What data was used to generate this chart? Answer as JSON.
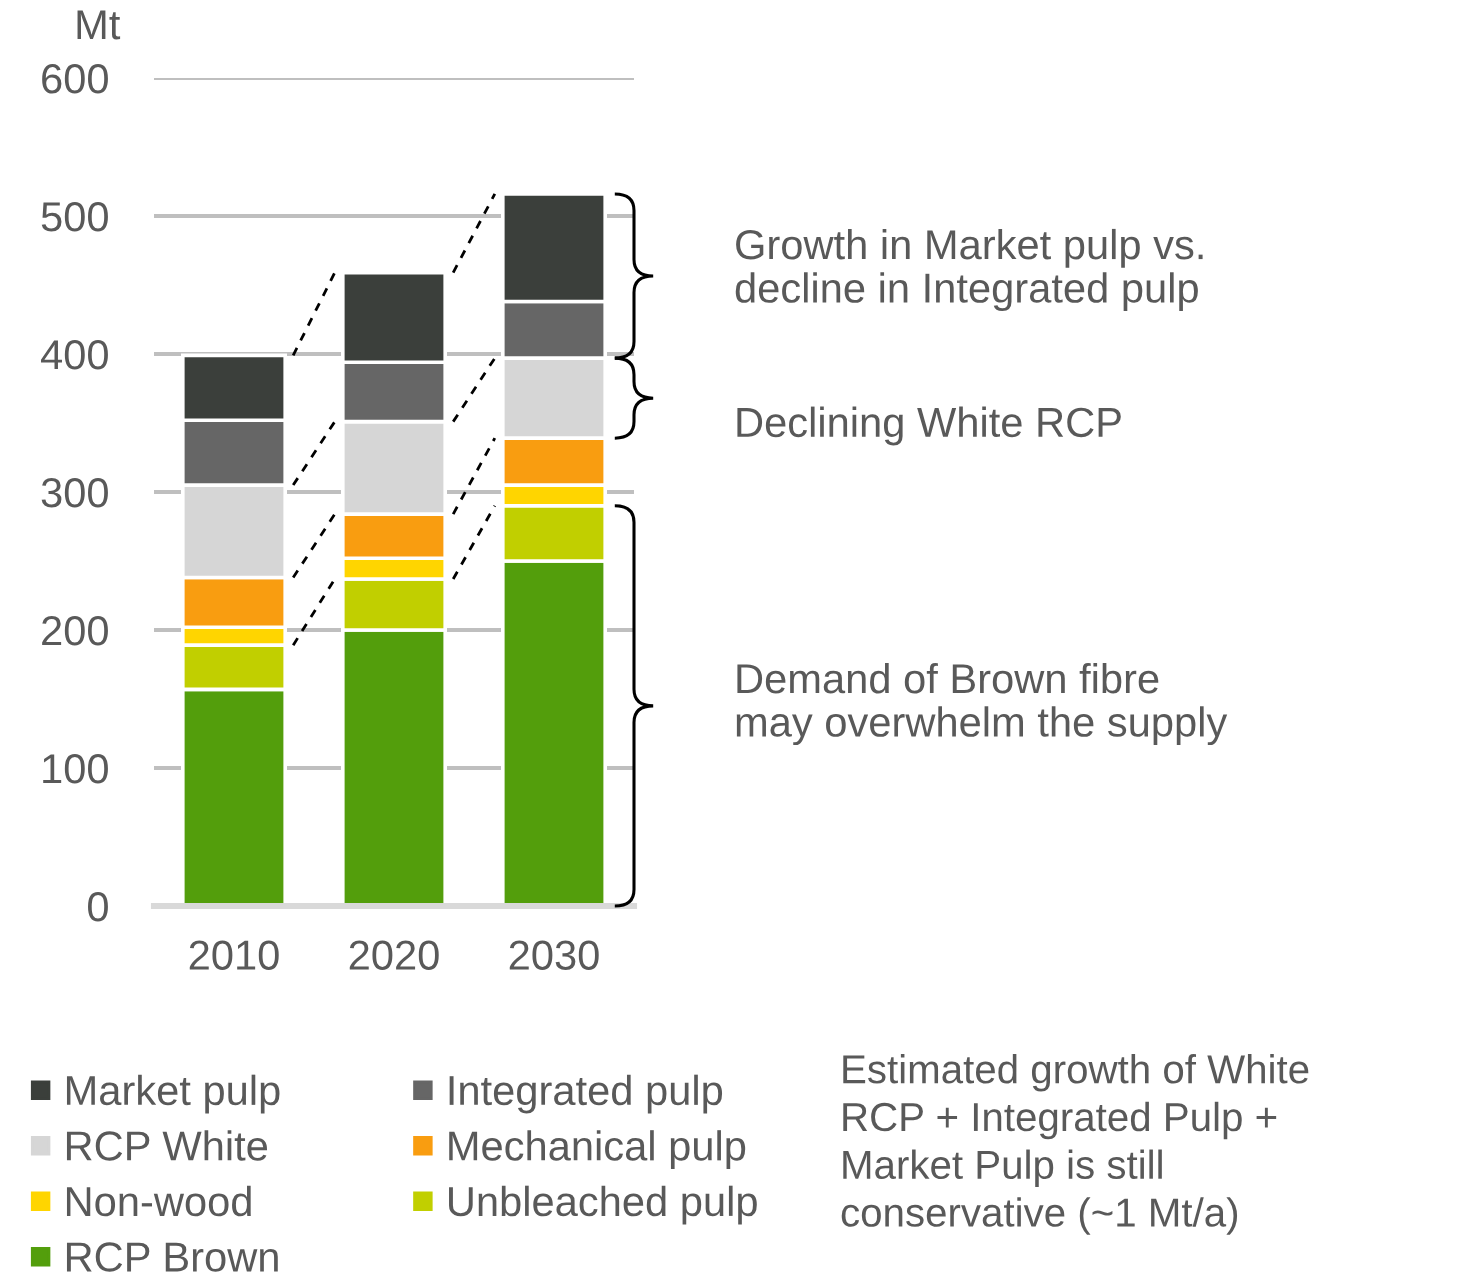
{
  "chart_data": {
    "type": "bar",
    "stacked": true,
    "categories": [
      "2010",
      "2020",
      "2030"
    ],
    "ylabel": "Mt",
    "ylim": [
      0,
      600
    ],
    "yticks": [
      0,
      100,
      200,
      300,
      400,
      500,
      600
    ],
    "grid": "y",
    "legend": "bottom",
    "series": [
      {
        "name": "RCP Brown",
        "color": "#539e0c",
        "values": [
          157,
          200,
          250
        ]
      },
      {
        "name": "Unbleached pulp",
        "color": "#c1cf00",
        "values": [
          32,
          37,
          40
        ]
      },
      {
        "name": "Non-wood",
        "color": "#ffd500",
        "values": [
          13,
          15,
          15
        ]
      },
      {
        "name": "Mechanical pulp",
        "color": "#f99d10",
        "values": [
          36,
          32,
          34
        ]
      },
      {
        "name": "RCP White",
        "color": "#d6d6d6",
        "values": [
          67,
          67,
          58
        ]
      },
      {
        "name": "Integrated pulp",
        "color": "#666666",
        "values": [
          47,
          43,
          41
        ]
      },
      {
        "name": "Market pulp",
        "color": "#3b3f3b",
        "values": [
          47,
          65,
          78
        ]
      }
    ],
    "annotations": [
      "Growth in Market pulp vs.\ndecline in Integrated pulp",
      "Declining White RCP",
      "Demand of Brown fibre\nmay overwhelm the supply",
      "Estimated growth of White\nRCP + Integrated Pulp +\nMarket Pulp is still\nconservative (~1 Mt/a)"
    ]
  }
}
